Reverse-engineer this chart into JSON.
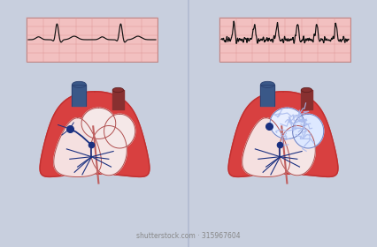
{
  "bg_color": "#c8cfde",
  "ecg_bg": "#f2c0c0",
  "ecg_grid_color": "#e09898",
  "ecg_line_color": "#111111",
  "heart_outer_color": "#d84040",
  "heart_border_color": "#c03030",
  "lv_color": "#f5e0e0",
  "rv_color": "#f5e5e5",
  "la_color": "#f5e8e8",
  "ra_color": "#f5e8e8",
  "la_afib_color": "#e8eeff",
  "ra_afib_color": "#dde8ff",
  "vessel_blue_color": "#3a5888",
  "vessel_red_color": "#883030",
  "conduction_color": "#1a3080",
  "divider_color": "#aab5cc",
  "fibrillation_color": "#aabbee"
}
